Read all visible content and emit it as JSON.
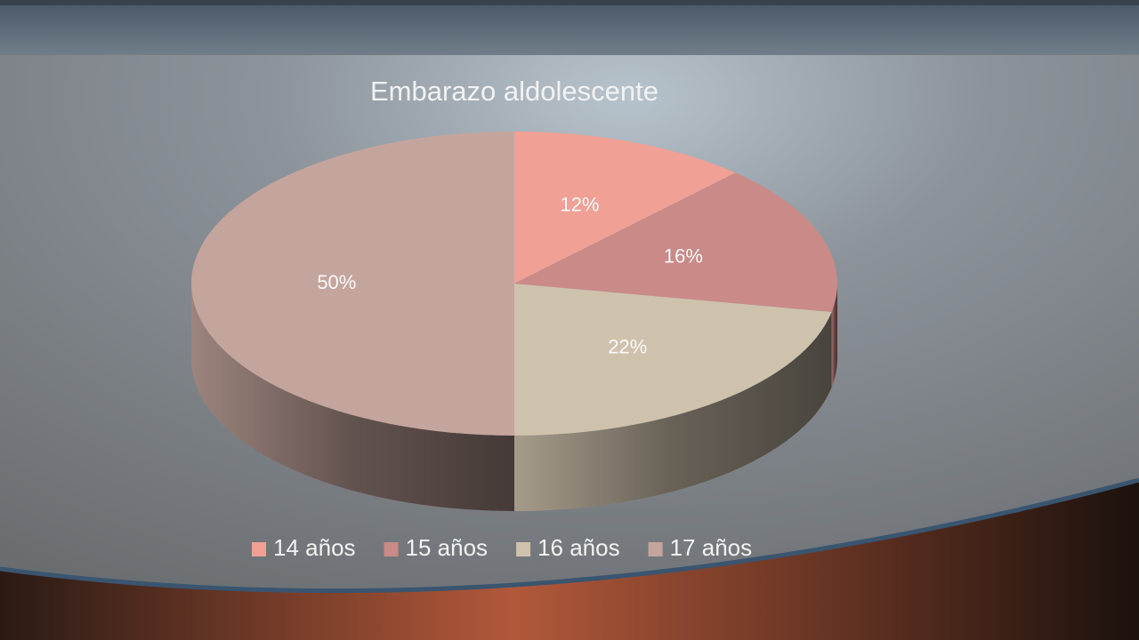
{
  "chart_data": {
    "type": "pie",
    "title": "Embarazo aldolescente",
    "categories": [
      "14 años",
      "15 años",
      "16 años",
      "17 años"
    ],
    "values": [
      12,
      16,
      22,
      50
    ],
    "value_labels": [
      "12%",
      "16%",
      "22%",
      "50%"
    ],
    "colors": [
      "#f0a095",
      "#c98a88",
      "#cfc2ad",
      "#c4a59d"
    ],
    "legend": "bottom"
  }
}
